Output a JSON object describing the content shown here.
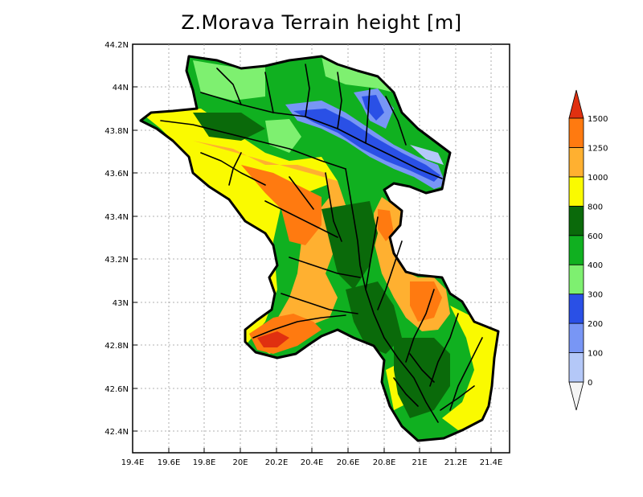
{
  "title": "Z.Morava Terrain height [m]",
  "y_ticks": [
    "44.2N",
    "44N",
    "43.8N",
    "43.6N",
    "43.4N",
    "43.2N",
    "43N",
    "42.8N",
    "42.6N",
    "42.4N"
  ],
  "x_ticks": [
    "19.4E",
    "19.6E",
    "19.8E",
    "20E",
    "20.2E",
    "20.4E",
    "20.6E",
    "20.8E",
    "21E",
    "21.2E",
    "21.4E"
  ],
  "colorbar": {
    "labels": [
      "0",
      "100",
      "200",
      "300",
      "400",
      "600",
      "800",
      "1000",
      "1250",
      "1500"
    ],
    "colors": [
      "#f4f4f4",
      "#b4c8f8",
      "#7896f5",
      "#2a50e6",
      "#7ef070",
      "#10b020",
      "#0a6a0a",
      "#fafa00",
      "#ffb030",
      "#ff7a10",
      "#e03010"
    ]
  },
  "map": {
    "lon_range": [
      19.4,
      21.5
    ],
    "lat_range": [
      42.3,
      44.2
    ],
    "grid": true
  }
}
